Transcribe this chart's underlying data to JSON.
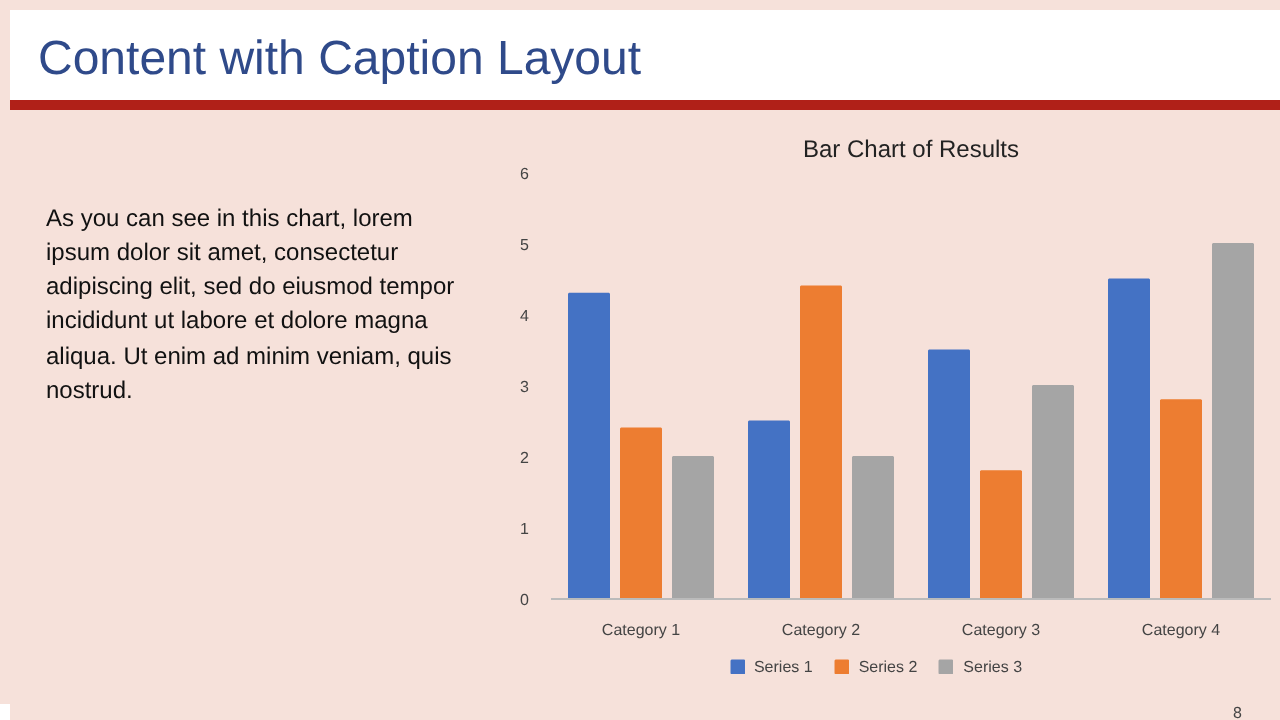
{
  "chart_data": {
    "type": "bar",
    "title": "Bar Chart of Results",
    "categories": [
      "Category 1",
      "Category 2",
      "Category 3",
      "Category 4"
    ],
    "series": [
      {
        "name": "Series 1",
        "color": "#4472c4",
        "values": [
          4.3,
          2.5,
          3.5,
          4.5
        ]
      },
      {
        "name": "Series 2",
        "color": "#ed7d31",
        "values": [
          2.4,
          4.4,
          1.8,
          2.8
        ]
      },
      {
        "name": "Series 3",
        "color": "#a5a5a5",
        "values": [
          2,
          2,
          3,
          5
        ]
      }
    ],
    "ylim": [
      0,
      6
    ],
    "yticks": [
      0,
      1,
      2,
      3,
      4,
      5,
      6
    ],
    "grid": false,
    "legend": "bottom",
    "annotations": [
      "Content with Caption Layout",
      "As you can see in this chart, lorem ipsum dolor sit amet, consectetur adipiscing elit, sed do eiusmod tempor incididunt ut labore et dolore magna aliqua. Ut enim ad minim veniam, quis nostrud.",
      "8"
    ]
  }
}
